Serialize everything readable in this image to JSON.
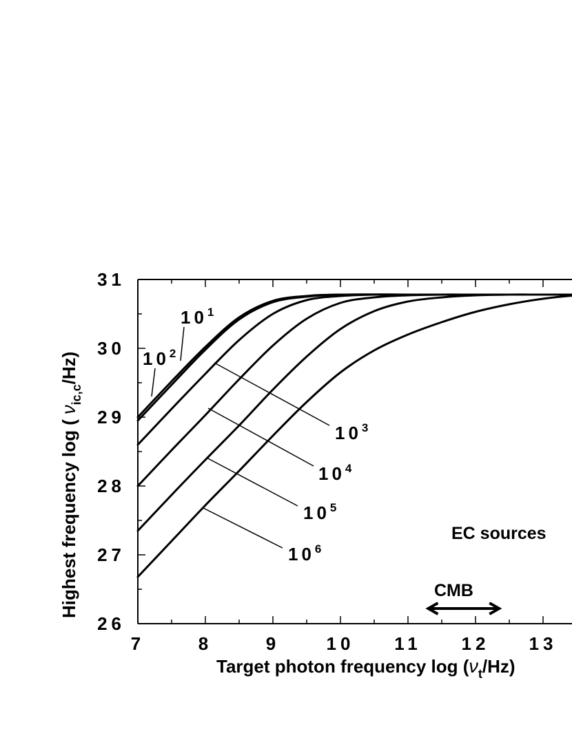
{
  "chart_data": {
    "type": "line",
    "xlabel": {
      "prefix": "Target photon frequency  log (",
      "symbol": "ν",
      "subscript": "t",
      "suffix": "/Hz)"
    },
    "ylabel": {
      "prefix": "Highest frequency  log ( ",
      "symbol": "ν",
      "subscript": "ic,c",
      "suffix": "/Hz)"
    },
    "xlim": [
      7,
      14
    ],
    "ylim": [
      26,
      31
    ],
    "x_ticks": [
      "7",
      "8",
      "9",
      "10",
      "11",
      "12",
      "13"
    ],
    "y_ticks": [
      "26",
      "27",
      "28",
      "29",
      "30",
      "31"
    ],
    "grid": false,
    "series": [
      {
        "label_base": "10",
        "label_exp": "1",
        "x": [
          7.0,
          7.5,
          8.0,
          8.5,
          9.0,
          9.5,
          10.0,
          11.0,
          12.0,
          13.0,
          14.0
        ],
        "y": [
          29.0,
          29.52,
          30.02,
          30.45,
          30.69,
          30.76,
          30.78,
          30.78,
          30.78,
          30.78,
          30.78
        ]
      },
      {
        "label_base": "10",
        "label_exp": "2",
        "x": [
          7.0,
          7.5,
          8.0,
          8.5,
          9.0,
          9.5,
          10.0,
          11.0,
          12.0,
          13.0,
          14.0
        ],
        "y": [
          28.95,
          29.47,
          29.98,
          30.42,
          30.67,
          30.75,
          30.78,
          30.78,
          30.78,
          30.78,
          30.78
        ]
      },
      {
        "label_base": "10",
        "label_exp": "3",
        "x": [
          7.0,
          7.5,
          8.0,
          8.5,
          9.0,
          9.5,
          10.0,
          10.5,
          11.0,
          12.0,
          13.0,
          14.0
        ],
        "y": [
          28.6,
          29.12,
          29.63,
          30.12,
          30.5,
          30.7,
          30.76,
          30.78,
          30.78,
          30.78,
          30.78,
          30.78
        ]
      },
      {
        "label_base": "10",
        "label_exp": "4",
        "x": [
          7.0,
          7.5,
          8.0,
          8.5,
          9.0,
          9.5,
          10.0,
          10.5,
          11.0,
          11.5,
          12.0,
          13.0,
          14.0
        ],
        "y": [
          28.0,
          28.52,
          29.03,
          29.55,
          30.04,
          30.43,
          30.66,
          30.74,
          30.77,
          30.78,
          30.78,
          30.78,
          30.78
        ]
      },
      {
        "label_base": "10",
        "label_exp": "5",
        "x": [
          7.0,
          7.5,
          8.0,
          8.5,
          9.0,
          9.5,
          10.0,
          10.5,
          11.0,
          11.5,
          12.0,
          12.5,
          13.0,
          14.0
        ],
        "y": [
          27.35,
          27.87,
          28.38,
          28.88,
          29.4,
          29.88,
          30.28,
          30.54,
          30.68,
          30.74,
          30.77,
          30.78,
          30.78,
          30.78
        ]
      },
      {
        "label_base": "10",
        "label_exp": "6",
        "x": [
          7.0,
          7.5,
          8.0,
          8.5,
          9.0,
          9.5,
          10.0,
          10.5,
          11.0,
          11.5,
          12.0,
          12.5,
          13.0,
          13.5,
          14.0
        ],
        "y": [
          26.68,
          27.2,
          27.72,
          28.22,
          28.73,
          29.22,
          29.65,
          29.97,
          30.2,
          30.38,
          30.53,
          30.64,
          30.72,
          30.77,
          30.78
        ]
      }
    ],
    "annotations": {
      "sources": "EC sources",
      "cmb": "CMB",
      "cmb_range": [
        11.3,
        12.35
      ]
    }
  }
}
